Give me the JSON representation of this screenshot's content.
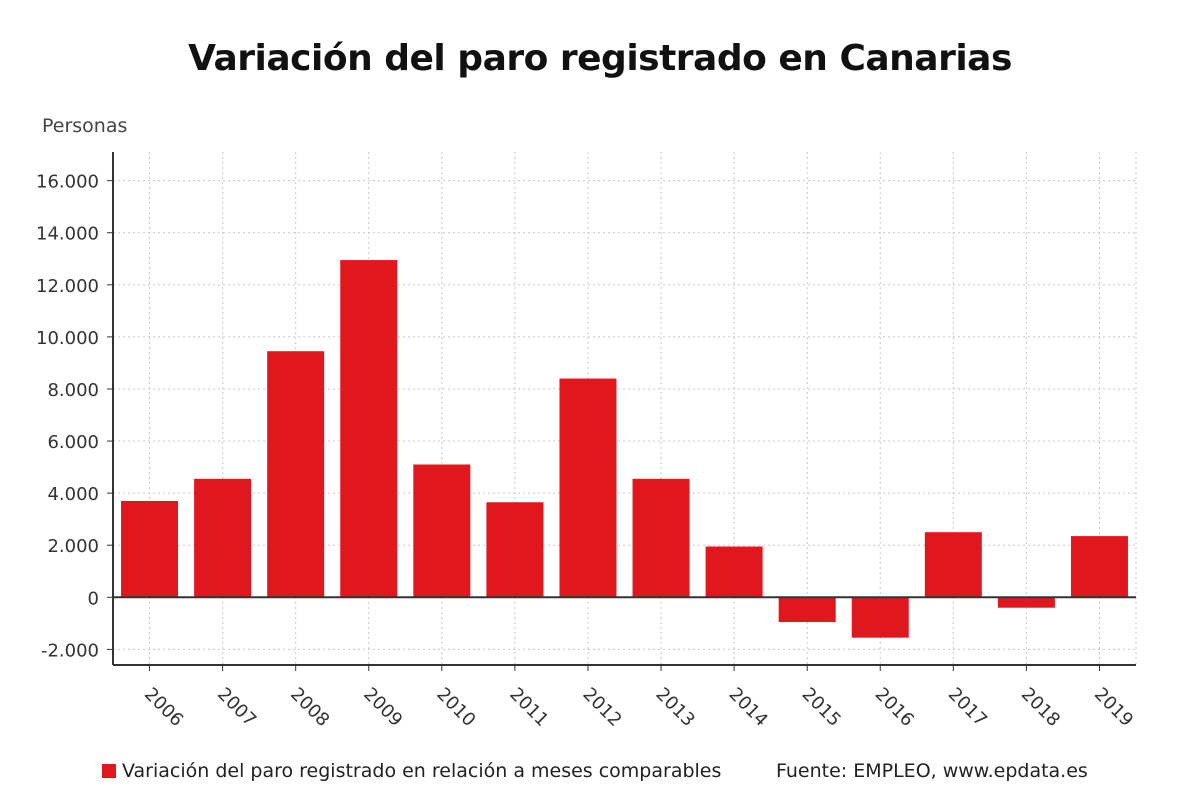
{
  "title": "Variación del paro registrado en Canarias",
  "unit_label": "Personas",
  "legend_label": "Variación del paro registrado en relación a meses comparables",
  "source": "Fuente: EMPLEO, www.epdata.es",
  "colors": {
    "bar": "#e0181e",
    "grid": "#c8c8c8",
    "axis": "#333333"
  },
  "chart_data": {
    "type": "bar",
    "title": "Variación del paro registrado en Canarias",
    "ylabel": "Personas",
    "xlabel": "",
    "categories": [
      "2006",
      "2007",
      "2008",
      "2009",
      "2010",
      "2011",
      "2012",
      "2013",
      "2014",
      "2015",
      "2016",
      "2017",
      "2018",
      "2019"
    ],
    "series": [
      {
        "name": "Variación del paro registrado en relación a meses comparables",
        "values": [
          3700,
          4550,
          9450,
          12950,
          5100,
          3650,
          8400,
          4550,
          1950,
          -950,
          -1550,
          2500,
          -400,
          2350
        ]
      }
    ],
    "ylim": [
      -2600,
      17100
    ],
    "yticks": [
      -2000,
      0,
      2000,
      4000,
      6000,
      8000,
      10000,
      12000,
      14000,
      16000
    ],
    "ytick_labels": [
      "-2.000",
      "0",
      "2.000",
      "4.000",
      "6.000",
      "8.000",
      "10.000",
      "12.000",
      "14.000",
      "16.000"
    ],
    "grid": true,
    "legend_position": "bottom"
  }
}
